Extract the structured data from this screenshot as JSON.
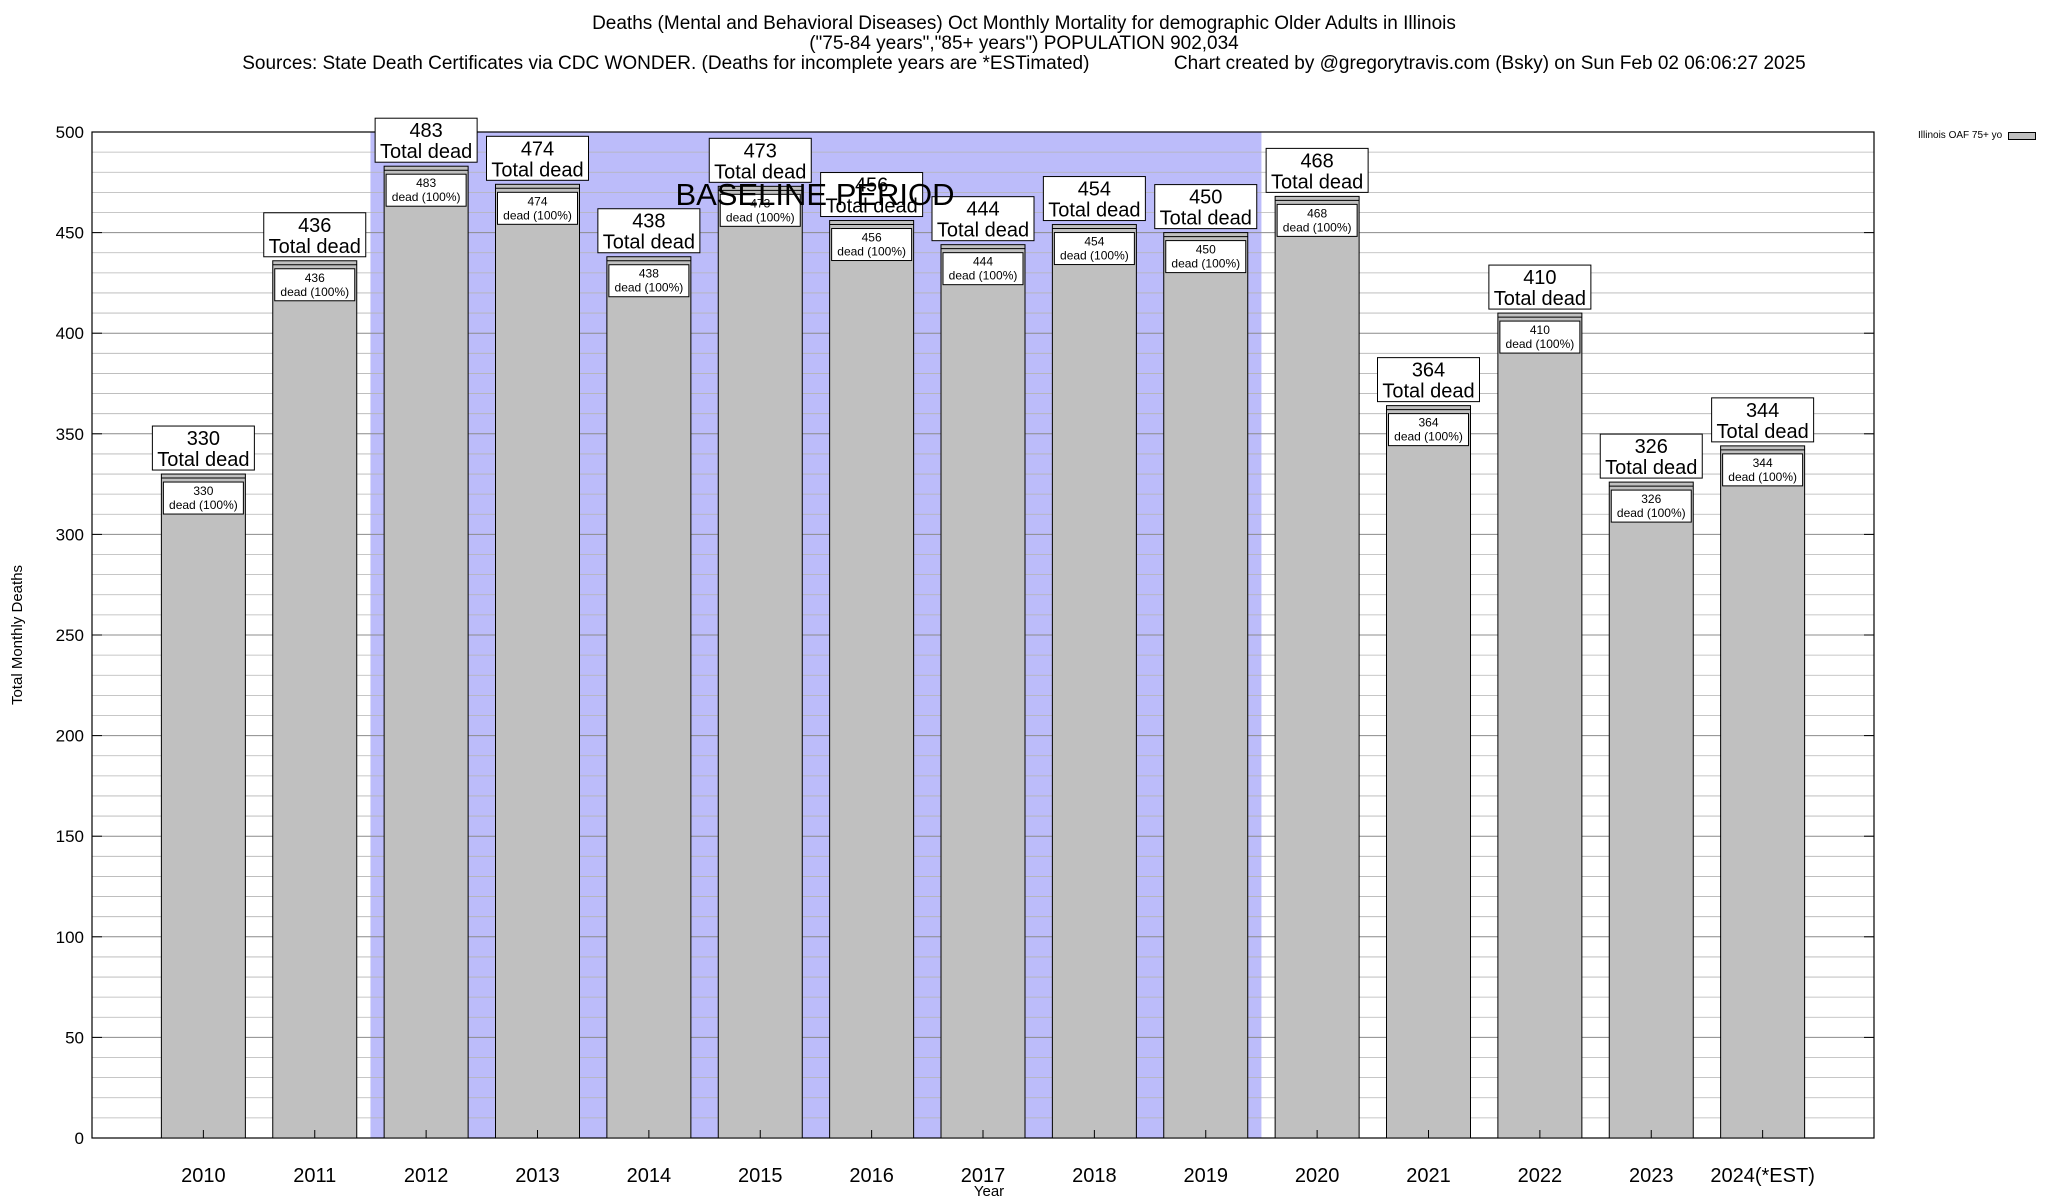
{
  "titles": {
    "line1": "Deaths (Mental and Behavioral Diseases) Oct Monthly Mortality for demographic Older Adults in Illinois",
    "line2": "(\"75-84 years\",\"85+ years\") POPULATION 902,034",
    "line3": "Sources: State Death Certificates via CDC WONDER. (Deaths for incomplete years are *ESTimated)                Chart created by @gregorytravis.com (Bsky) on Sun Feb 02 06:06:27 2025"
  },
  "legend": {
    "label": "Illinois OAF 75+ yo"
  },
  "chart_data": {
    "type": "bar",
    "xlabel": "Year",
    "ylabel": "Total Monthly Deaths",
    "ylim": [
      0,
      500
    ],
    "yticks": [
      0,
      50,
      100,
      150,
      200,
      250,
      300,
      350,
      400,
      450,
      500
    ],
    "grid": true,
    "legend_position": "top-right",
    "categories": [
      "2010",
      "2011",
      "2012",
      "2013",
      "2014",
      "2015",
      "2016",
      "2017",
      "2018",
      "2019",
      "2020",
      "2021",
      "2022",
      "2023",
      "2024(*EST)"
    ],
    "series": [
      {
        "name": "Illinois OAF 75+ yo",
        "values": [
          330,
          436,
          483,
          474,
          438,
          473,
          456,
          444,
          454,
          450,
          468,
          364,
          410,
          326,
          344
        ]
      }
    ],
    "top_label_suffix": "Total dead",
    "inner_label_suffix": "dead (100%)",
    "baseline": {
      "label": "BASELINE PERIOD",
      "start": "2012",
      "end": "2019"
    },
    "colors": {
      "bar": "#c0c0c0",
      "baseline": "#bcbcfa",
      "grid": "#b4b4b4"
    }
  }
}
